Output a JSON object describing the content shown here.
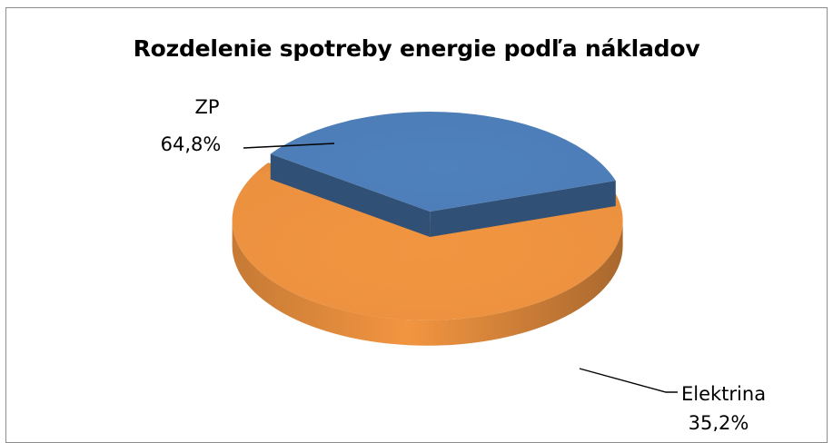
{
  "chart_data": {
    "type": "pie",
    "title": "Rozdelenie spotreby energie podľa nákladov",
    "categories": [
      "ZP",
      "Elektrina"
    ],
    "values": [
      64.8,
      35.2
    ],
    "value_labels": [
      "64,8%",
      "35,2%"
    ],
    "colors": [
      "#F29541",
      "#4F81BD"
    ],
    "exploded": [
      "Elektrina"
    ],
    "style": "3D",
    "legend": "none"
  }
}
